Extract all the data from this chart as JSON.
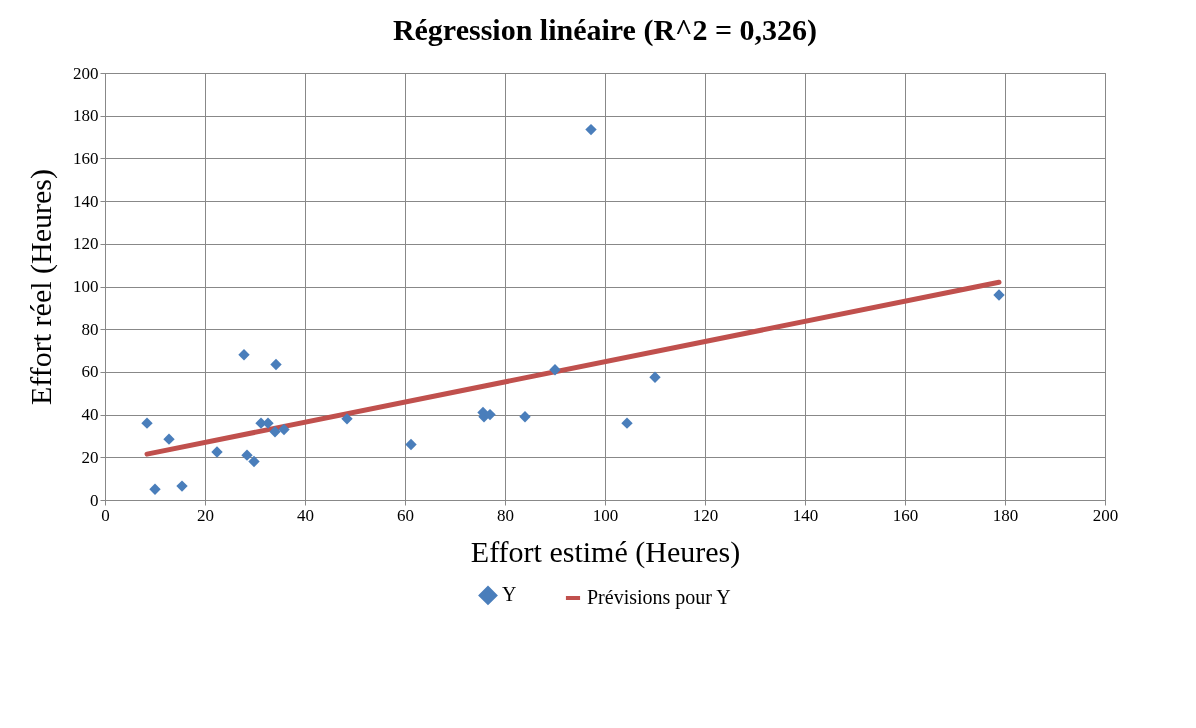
{
  "chart_data": {
    "type": "scatter",
    "title": "Régression linéaire (R^2 = 0,326)",
    "xlabel": "Effort estimé (Heures)",
    "ylabel": "Effort réel (Heures)",
    "xlim": [
      0,
      200
    ],
    "xticks": [
      0,
      20,
      40,
      60,
      80,
      100,
      120,
      140,
      160,
      180,
      200
    ],
    "ylim": [
      0,
      200
    ],
    "yticks": [
      0,
      20,
      40,
      60,
      80,
      100,
      120,
      140,
      160,
      180,
      200
    ],
    "grid": true,
    "legend": "bottom",
    "series": [
      {
        "name": "Y",
        "marker": "diamond",
        "color": "#4a7ebb",
        "x": [
          8.4,
          10,
          12.8,
          15.4,
          22.4,
          27.8,
          28.4,
          29.8,
          31.2,
          32.6,
          34,
          34.2,
          35.8,
          48.4,
          61.2,
          75.6,
          75.8,
          77,
          84,
          90,
          97.2,
          104.4,
          110,
          178.8
        ],
        "values": [
          36,
          5,
          28.5,
          6.5,
          22.5,
          68,
          21,
          18,
          36,
          36,
          32,
          63.5,
          33,
          38,
          26,
          41,
          39,
          40,
          39,
          61,
          173.5,
          36,
          57.5,
          96
        ]
      },
      {
        "name": "Prévisions pour Y",
        "type": "line",
        "color": "#c0504d",
        "x": [
          8.4,
          178.8
        ],
        "values": [
          21.5,
          102
        ]
      }
    ]
  }
}
